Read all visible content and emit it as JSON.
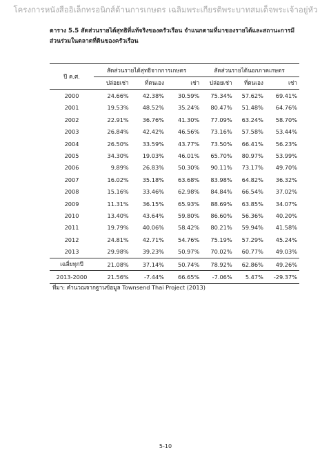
{
  "header": "โครงการหนังสืออิเล็กทรอนิกส์ด้านการเกษตร เฉลิมพระเกียรติพระบาทสมเด็จพระเจ้าอยู่หัว",
  "title": "ตาราง 5.5 สัดส่วนรายได้สุทธิที่แท้จริงของครัวเรือน จำแนกตามที่มาของรายได้และสถานะการมีส่วนร่วมในตลาดที่ดินของครัวเรือน",
  "table": {
    "year_header": "ปี ค.ศ.",
    "groups": [
      "สัดส่วนรายได้สุทธิจากการเกษตร",
      "สัดส่วนรายได้นอกภาคเกษตร"
    ],
    "subheaders": [
      "ปล่อยเช่า",
      "ที่ตนเอง",
      "เช่า",
      "ปล่อยเช่า",
      "ที่ตนเอง",
      "เช่า"
    ],
    "rows": [
      [
        "2000",
        "24.66%",
        "42.38%",
        "30.59%",
        "75.34%",
        "57.62%",
        "69.41%"
      ],
      [
        "2001",
        "19.53%",
        "48.52%",
        "35.24%",
        "80.47%",
        "51.48%",
        "64.76%"
      ],
      [
        "2002",
        "22.91%",
        "36.76%",
        "41.30%",
        "77.09%",
        "63.24%",
        "58.70%"
      ],
      [
        "2003",
        "26.84%",
        "42.42%",
        "46.56%",
        "73.16%",
        "57.58%",
        "53.44%"
      ],
      [
        "2004",
        "26.50%",
        "33.59%",
        "43.77%",
        "73.50%",
        "66.41%",
        "56.23%"
      ],
      [
        "2005",
        "34.30%",
        "19.03%",
        "46.01%",
        "65.70%",
        "80.97%",
        "53.99%"
      ],
      [
        "2006",
        "9.89%",
        "26.83%",
        "50.30%",
        "90.11%",
        "73.17%",
        "49.70%"
      ],
      [
        "2007",
        "16.02%",
        "35.18%",
        "63.68%",
        "83.98%",
        "64.82%",
        "36.32%"
      ],
      [
        "2008",
        "15.16%",
        "33.46%",
        "62.98%",
        "84.84%",
        "66.54%",
        "37.02%"
      ],
      [
        "2009",
        "11.31%",
        "36.15%",
        "65.93%",
        "88.69%",
        "63.85%",
        "34.07%"
      ],
      [
        "2010",
        "13.40%",
        "43.64%",
        "59.80%",
        "86.60%",
        "56.36%",
        "40.20%"
      ],
      [
        "2011",
        "19.79%",
        "40.06%",
        "58.42%",
        "80.21%",
        "59.94%",
        "41.58%"
      ],
      [
        "2012",
        "24.81%",
        "42.71%",
        "54.76%",
        "75.19%",
        "57.29%",
        "45.24%"
      ],
      [
        "2013",
        "29.98%",
        "39.23%",
        "50.97%",
        "70.02%",
        "60.77%",
        "49.03%"
      ],
      [
        "เฉลี่ยทุกปี",
        "21.08%",
        "37.14%",
        "50.74%",
        "78.92%",
        "62.86%",
        "49.26%"
      ],
      [
        "2013-2000",
        "21.56%",
        "-7.44%",
        "66.65%",
        "-7.06%",
        "5.47%",
        "-29.37%"
      ]
    ]
  },
  "source": "ที่มา: คำนวณจากฐานข้อมูล Townsend Thai Project (2013)",
  "page_number": "5-10"
}
